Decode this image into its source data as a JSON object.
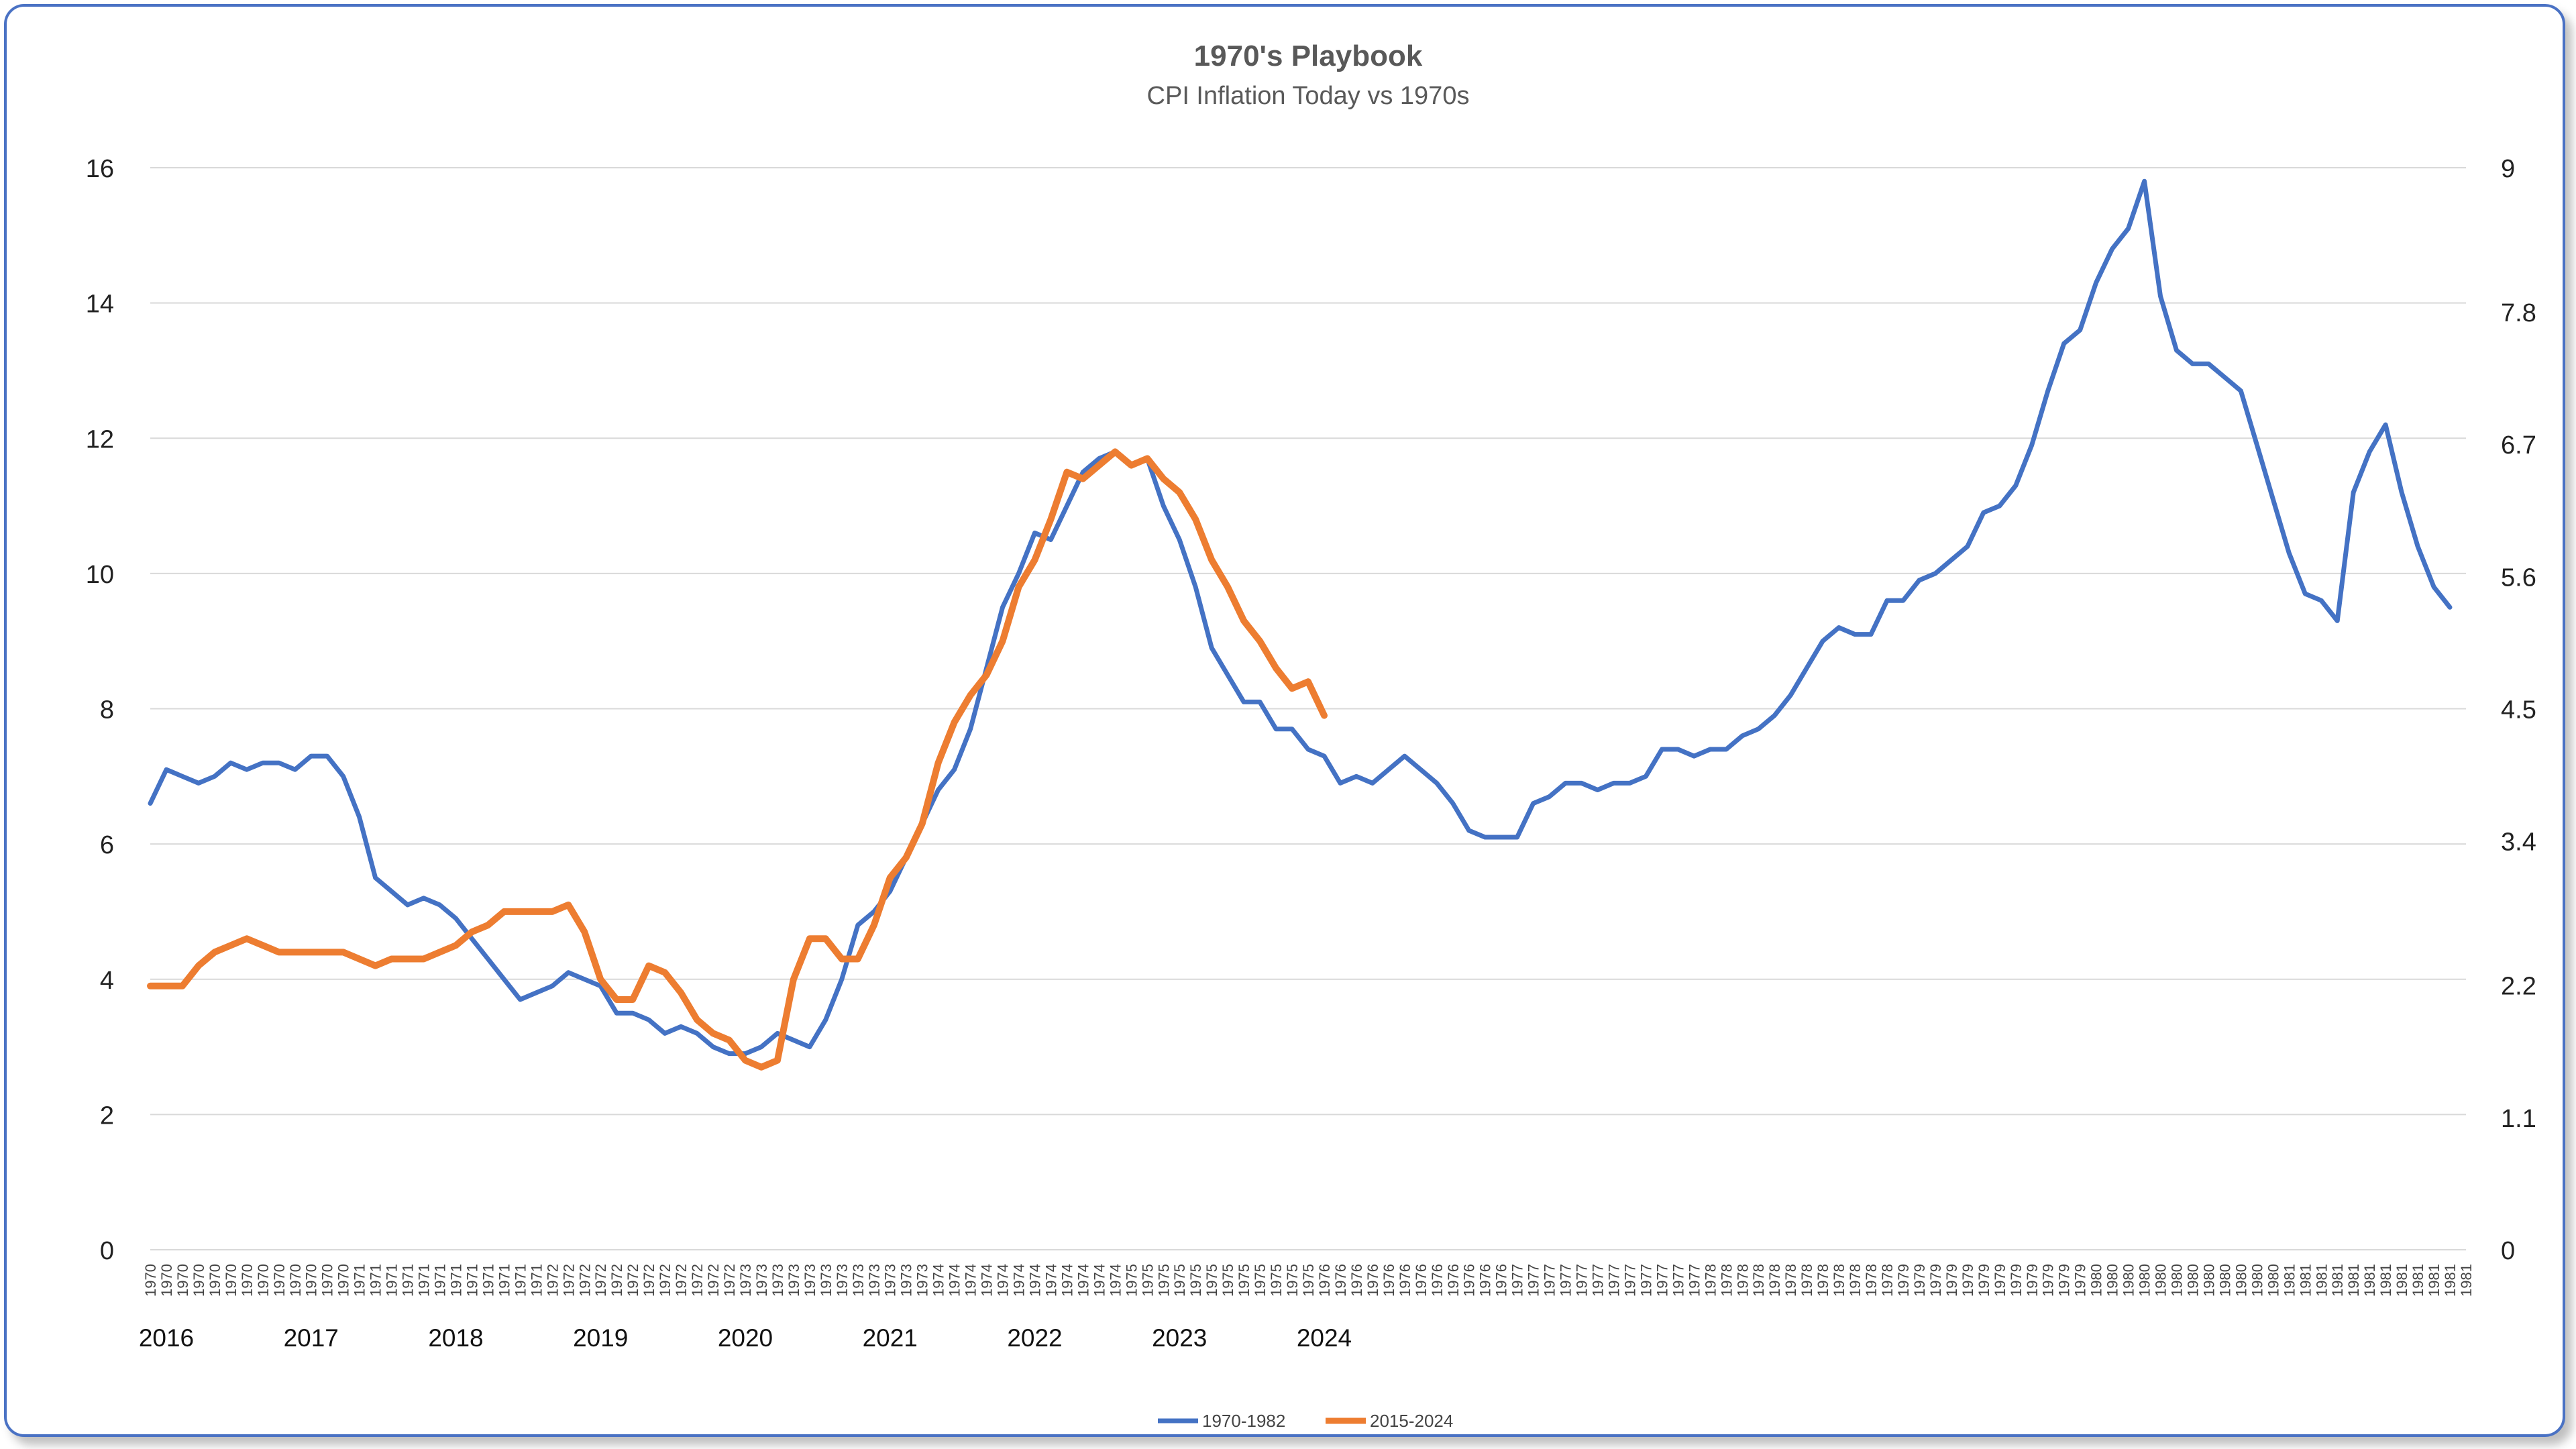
{
  "chart_data": {
    "type": "line",
    "title": "1970's Playbook",
    "subtitle": "CPI Inflation Today vs 1970s",
    "y_left": {
      "ticks": [
        "0",
        "2",
        "4",
        "6",
        "8",
        "10",
        "12",
        "14",
        "16"
      ],
      "ylim": [
        0,
        16
      ]
    },
    "y_right": {
      "ticks": [
        "0",
        "1.1",
        "2.2",
        "3.4",
        "4.5",
        "5.6",
        "6.7",
        "7.8",
        "9"
      ],
      "ylim": [
        0,
        9
      ]
    },
    "x_tick_labels": [
      "1970",
      "1970",
      "1970",
      "1970",
      "1970",
      "1970",
      "1970",
      "1970",
      "1970",
      "1970",
      "1970",
      "1970",
      "1970",
      "1971",
      "1971",
      "1971",
      "1971",
      "1971",
      "1971",
      "1971",
      "1971",
      "1971",
      "1971",
      "1971",
      "1971",
      "1972",
      "1972",
      "1972",
      "1972",
      "1972",
      "1972",
      "1972",
      "1972",
      "1972",
      "1972",
      "1972",
      "1972",
      "1973",
      "1973",
      "1973",
      "1973",
      "1973",
      "1973",
      "1973",
      "1973",
      "1973",
      "1973",
      "1973",
      "1973",
      "1974",
      "1974",
      "1974",
      "1974",
      "1974",
      "1974",
      "1974",
      "1974",
      "1974",
      "1974",
      "1974",
      "1974",
      "1975",
      "1975",
      "1975",
      "1975",
      "1975",
      "1975",
      "1975",
      "1975",
      "1975",
      "1975",
      "1975",
      "1975",
      "1976",
      "1976",
      "1976",
      "1976",
      "1976",
      "1976",
      "1976",
      "1976",
      "1976",
      "1976",
      "1976",
      "1976",
      "1977",
      "1977",
      "1977",
      "1977",
      "1977",
      "1977",
      "1977",
      "1977",
      "1977",
      "1977",
      "1977",
      "1977",
      "1978",
      "1978",
      "1978",
      "1978",
      "1978",
      "1978",
      "1978",
      "1978",
      "1978",
      "1978",
      "1978",
      "1978",
      "1979",
      "1979",
      "1979",
      "1979",
      "1979",
      "1979",
      "1979",
      "1979",
      "1979",
      "1979",
      "1979",
      "1979",
      "1980",
      "1980",
      "1980",
      "1980",
      "1980",
      "1980",
      "1980",
      "1980",
      "1980",
      "1980",
      "1980",
      "1980",
      "1981",
      "1981",
      "1981",
      "1981",
      "1981",
      "1981",
      "1981",
      "1981",
      "1981",
      "1981",
      "1981",
      "1981"
    ],
    "year_labels": [
      "2016",
      "2017",
      "2018",
      "2019",
      "2020",
      "2021",
      "2022",
      "2023",
      "2024"
    ],
    "year_label_positions": [
      1,
      10,
      19,
      28,
      37,
      46,
      55,
      64,
      73
    ],
    "series": [
      {
        "name": "1970-1982",
        "color": "#4472c4",
        "axis": "left",
        "values": [
          6.6,
          7.1,
          7.0,
          6.9,
          7.0,
          7.2,
          7.1,
          7.2,
          7.2,
          7.1,
          7.3,
          7.3,
          7.0,
          6.4,
          5.5,
          5.3,
          5.1,
          5.2,
          5.1,
          4.9,
          4.6,
          4.3,
          4.0,
          3.7,
          3.8,
          3.9,
          4.1,
          4.0,
          3.9,
          3.5,
          3.5,
          3.4,
          3.2,
          3.3,
          3.2,
          3.0,
          2.9,
          2.9,
          3.0,
          3.2,
          3.1,
          3.0,
          3.4,
          4.0,
          4.8,
          5.0,
          5.3,
          5.8,
          6.3,
          6.8,
          7.1,
          7.7,
          8.6,
          9.5,
          10.0,
          10.6,
          10.5,
          11.0,
          11.5,
          11.7,
          11.8,
          11.6,
          11.7,
          11.0,
          10.5,
          9.8,
          8.9,
          8.5,
          8.1,
          8.1,
          7.7,
          7.7,
          7.4,
          7.3,
          6.9,
          7.0,
          6.9,
          7.1,
          7.3,
          7.1,
          6.9,
          6.6,
          6.2,
          6.1,
          6.1,
          6.1,
          6.6,
          6.7,
          6.9,
          6.9,
          6.8,
          6.9,
          6.9,
          7.0,
          7.4,
          7.4,
          7.3,
          7.4,
          7.4,
          7.6,
          7.7,
          7.9,
          8.2,
          8.6,
          9.0,
          9.2,
          9.1,
          9.1,
          9.6,
          9.6,
          9.9,
          10.0,
          10.2,
          10.4,
          10.9,
          11.0,
          11.3,
          11.9,
          12.7,
          13.4,
          13.6,
          14.3,
          14.8,
          15.1,
          15.8,
          14.1,
          13.3,
          13.1,
          13.1,
          12.9,
          12.7,
          11.9,
          11.1,
          10.3,
          9.7,
          9.6,
          9.3,
          11.2,
          11.8,
          12.2,
          11.2,
          10.4,
          9.8,
          9.5
        ]
      },
      {
        "name": "2015-2024",
        "color": "#ed7d31",
        "axis": "left",
        "values": [
          3.9,
          3.9,
          3.9,
          4.2,
          4.4,
          4.5,
          4.6,
          4.5,
          4.4,
          4.4,
          4.4,
          4.4,
          4.4,
          4.3,
          4.2,
          4.3,
          4.3,
          4.3,
          4.4,
          4.5,
          4.7,
          4.8,
          5.0,
          5.0,
          5.0,
          5.0,
          5.1,
          4.7,
          4.0,
          3.7,
          3.7,
          4.2,
          4.1,
          3.8,
          3.4,
          3.2,
          3.1,
          2.8,
          2.7,
          2.8,
          4.0,
          4.6,
          4.6,
          4.3,
          4.3,
          4.8,
          5.5,
          5.8,
          6.3,
          7.2,
          7.8,
          8.2,
          8.5,
          9.0,
          9.8,
          10.2,
          10.8,
          11.5,
          11.4,
          11.6,
          11.8,
          11.6,
          11.7,
          11.4,
          11.2,
          10.8,
          10.2,
          9.8,
          9.3,
          9.0,
          8.6,
          8.3,
          8.4,
          7.9
        ]
      }
    ],
    "legend": {
      "placement": "bottom-center"
    },
    "grid": true
  }
}
